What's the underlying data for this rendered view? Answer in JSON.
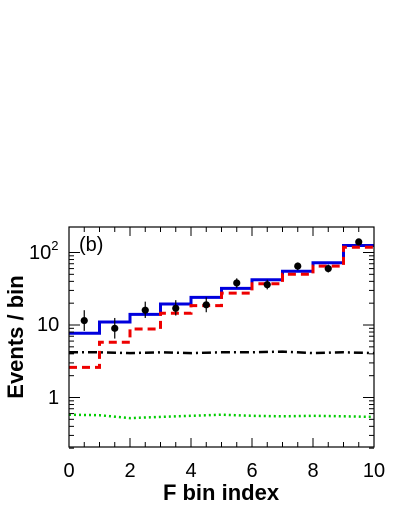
{
  "chart_data": {
    "type": "line",
    "panel_label": "(b)",
    "xlabel": "F bin index",
    "ylabel": "Events / bin",
    "xlim": [
      0,
      10
    ],
    "ylim": [
      0.2,
      130
    ],
    "yscale": "log",
    "x_ticks": [
      0,
      2,
      4,
      6,
      8,
      10
    ],
    "x_tick_labels": [
      "0",
      "2",
      "4",
      "6",
      "8",
      "10"
    ],
    "y_tick_labels": {
      "base": "10",
      "exp": "2",
      "ten": "10",
      "one": "1"
    },
    "bin_edges": [
      0,
      1,
      2,
      3,
      4,
      5,
      6,
      7,
      8,
      9,
      10
    ],
    "series": [
      {
        "style": "solid",
        "color": "#0000dd",
        "values": [
          7.7,
          11.0,
          14.0,
          19.5,
          24.0,
          32.0,
          42.0,
          55.0,
          72.0,
          125.0
        ]
      },
      {
        "style": "dashed",
        "color": "#ee0000",
        "values": [
          2.6,
          5.8,
          8.8,
          14.5,
          18.5,
          27.5,
          37.0,
          50.0,
          65.0,
          118.0
        ]
      },
      {
        "style": "dashdot",
        "color": "#000000",
        "points": [
          [
            0,
            4.2
          ],
          [
            1,
            4.2
          ],
          [
            2,
            4.1
          ],
          [
            3,
            4.2
          ],
          [
            4,
            4.1
          ],
          [
            5,
            4.2
          ],
          [
            6,
            4.2
          ],
          [
            7,
            4.3
          ],
          [
            8,
            4.1
          ],
          [
            9,
            4.2
          ],
          [
            10,
            4.1
          ]
        ]
      },
      {
        "style": "dotted",
        "color": "#00cc00",
        "points": [
          [
            0,
            0.58
          ],
          [
            1,
            0.57
          ],
          [
            2,
            0.52
          ],
          [
            3,
            0.54
          ],
          [
            4,
            0.56
          ],
          [
            5,
            0.58
          ],
          [
            6,
            0.56
          ],
          [
            7,
            0.55
          ],
          [
            8,
            0.56
          ],
          [
            9,
            0.55
          ],
          [
            10,
            0.54
          ]
        ]
      }
    ],
    "data_points": [
      {
        "x": 0.5,
        "y": 11.5,
        "lo": 8.3,
        "hi": 16.0
      },
      {
        "x": 1.5,
        "y": 9.0,
        "lo": 6.5,
        "hi": 12.5
      },
      {
        "x": 2.5,
        "y": 16.0,
        "lo": 12.5,
        "hi": 21.0
      },
      {
        "x": 3.5,
        "y": 17.0,
        "lo": 13.5,
        "hi": 22.0
      },
      {
        "x": 4.5,
        "y": 19.0,
        "lo": 15.0,
        "hi": 24.0
      },
      {
        "x": 5.5,
        "y": 38.0,
        "lo": 32.5,
        "hi": 44.0
      },
      {
        "x": 6.5,
        "y": 36.0,
        "lo": 31.0,
        "hi": 42.0
      },
      {
        "x": 7.5,
        "y": 65.0,
        "lo": 57.0,
        "hi": 73.0
      },
      {
        "x": 8.5,
        "y": 60.0,
        "lo": 53.0,
        "hi": 68.0
      },
      {
        "x": 9.5,
        "y": 140.0,
        "lo": 128.0,
        "hi": 152.0
      }
    ]
  }
}
